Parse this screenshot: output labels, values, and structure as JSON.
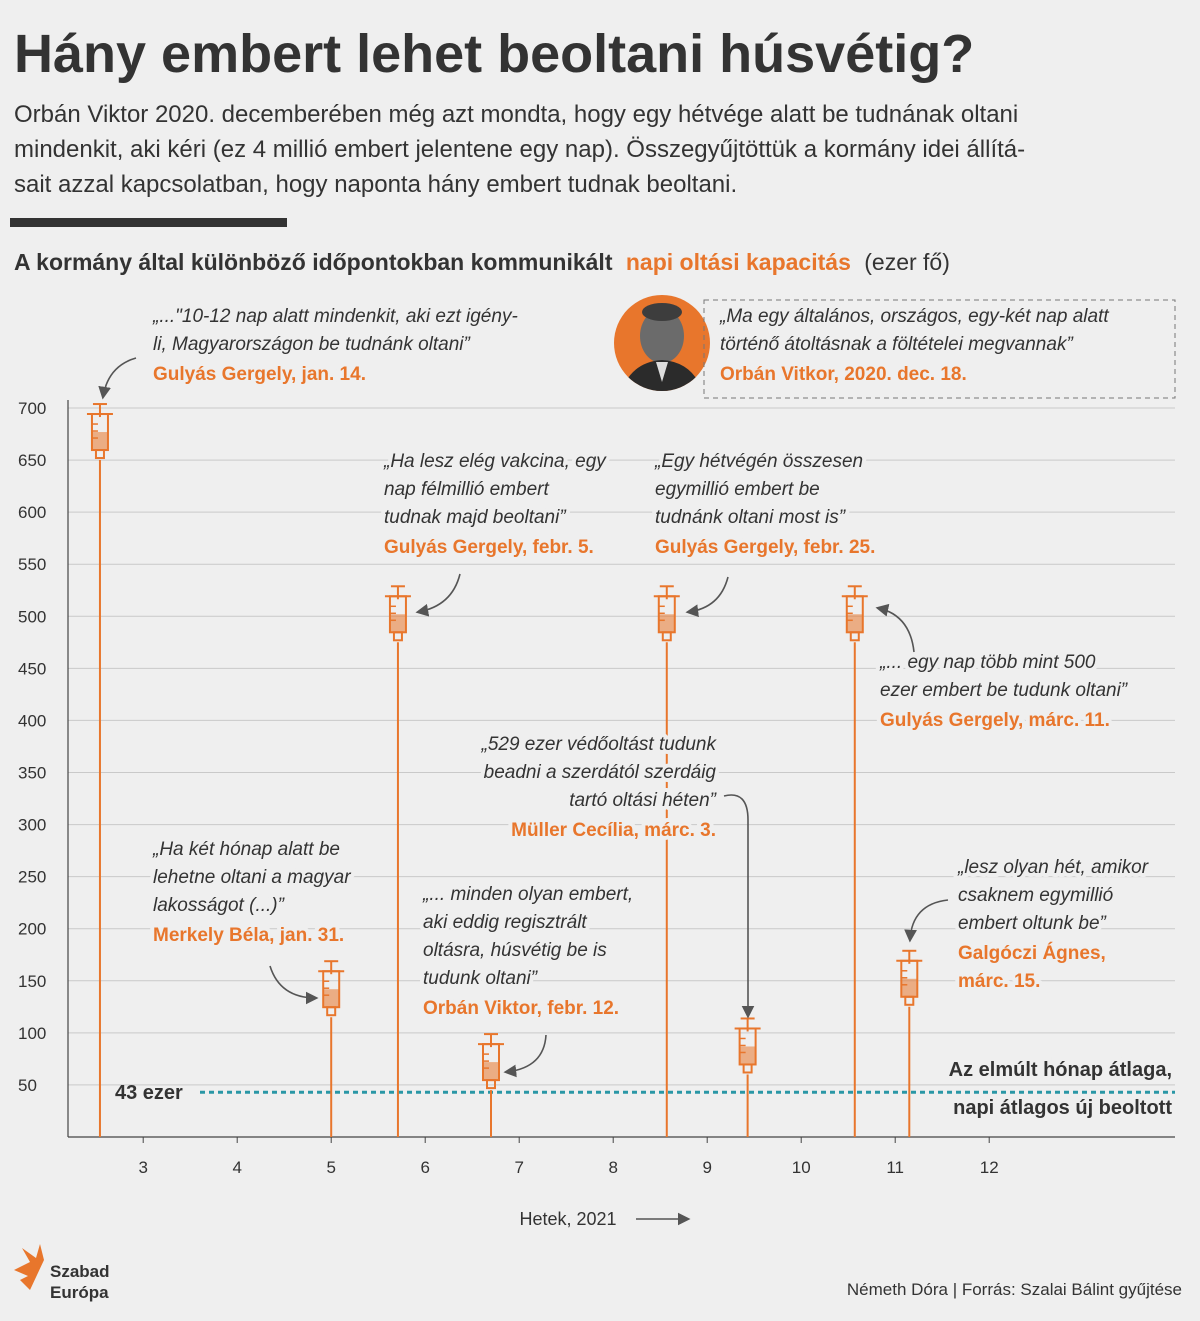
{
  "title": "Hány embert lehet beoltani húsvétig?",
  "intro": [
    "Orbán Viktor 2020. decemberében még azt mondta, hogy egy hétvége alatt be tudnának oltani",
    "mindenkit, aki kéri (ez 4 millió embert jelentene egy nap). Összegyűjtöttük a kormány idei állítá-",
    "sait azzal kapcsolatban, hogy naponta hány embert tudnak beoltani."
  ],
  "chart_data": {
    "type": "syringe",
    "title_parts": [
      "A kormány által különböző időpontokban kommunikált",
      "napi oltási kapacitás",
      "(ezer fő)"
    ],
    "x": [
      2.54,
      5,
      5.71,
      6.7,
      8.57,
      9.43,
      10.57,
      11.15
    ],
    "values": [
      675,
      140,
      500,
      70,
      500,
      85,
      500,
      150
    ],
    "xlim": [
      2.2,
      14
    ],
    "xticks": [
      3,
      4,
      5,
      6,
      7,
      8,
      9,
      10,
      11,
      12
    ],
    "ylim": [
      0,
      700
    ],
    "yticks": [
      50,
      100,
      150,
      200,
      250,
      300,
      350,
      400,
      450,
      500,
      550,
      600,
      650,
      700
    ],
    "grid": true,
    "xlabel": "Hetek, 2021",
    "color": "#e8762c",
    "quotes": [
      {
        "lines": [
          "„...\"10-12 nap alatt mindenkit, aki ezt igény-",
          "li, Magyarországon be  tudnánk oltani”"
        ],
        "speaker": [
          "Gulyás Gergely, jan. 14."
        ]
      },
      {
        "lines": [
          "„Ha két hónap alatt be",
          "lehetne oltani a magyar",
          "lakosságot (...)”"
        ],
        "speaker": [
          "Merkely Béla, jan. 31."
        ]
      },
      {
        "lines": [
          "„Ha lesz elég vakcina, egy",
          "nap félmillió embert",
          "tudnak majd beoltani”"
        ],
        "speaker": [
          "Gulyás Gergely, febr. 5."
        ]
      },
      {
        "lines": [
          "„... minden olyan embert,",
          "aki eddig regisztrált",
          "oltásra, húsvétig be is",
          "tudunk oltani”"
        ],
        "speaker": [
          "Orbán Viktor, febr. 12."
        ]
      },
      {
        "lines": [
          "„Egy hétvégén összesen",
          "egymillió embert be",
          "tudnánk oltani most is”"
        ],
        "speaker": [
          "Gulyás Gergely, febr. 25."
        ]
      },
      {
        "lines": [
          "„529 ezer védőoltást tudunk",
          "beadni a szerdától szerdáig",
          "tartó oltási héten”"
        ],
        "speaker": [
          "Müller Cecília, márc. 3."
        ]
      },
      {
        "lines": [
          "„... egy nap több mint 500",
          "ezer embert be tudunk oltani”"
        ],
        "speaker": [
          "Gulyás Gergely, márc. 11."
        ]
      },
      {
        "lines": [
          "„lesz olyan hét, amikor",
          "csaknem egymillió",
          "embert oltunk be”"
        ],
        "speaker": [
          "Galgóczi Ágnes,",
          "márc. 15."
        ]
      }
    ],
    "extra_quote": {
      "lines": [
        "„Ma egy általános, országos, egy-két nap alatt",
        "történő átoltásnak a föltételei megvannak”"
      ],
      "speaker": [
        "Orbán Vitkor, 2020. dec. 18."
      ]
    },
    "average": {
      "value": 43,
      "label": "43 ezer",
      "note": [
        "Az elmúlt hónap átlaga,",
        "napi átlagos új beoltott"
      ],
      "color": "#2a97a6"
    }
  },
  "footer": {
    "logo": [
      "Szabad",
      "Európa"
    ],
    "credit": "Németh Dóra | Forrás: Szalai Bálint gyűjtése"
  }
}
